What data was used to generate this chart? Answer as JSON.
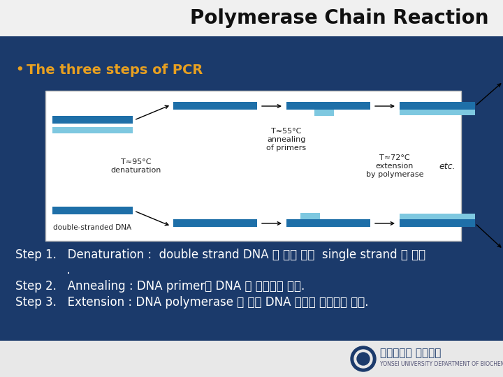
{
  "bg_color": "#1b3a6b",
  "title": "Polymerase Chain Reaction",
  "title_fontsize": 20,
  "title_color": "#111111",
  "header_bg": "#f0f0f0",
  "bullet_text": "The three steps of PCR",
  "bullet_color": "#e8a020",
  "bullet_fontsize": 14,
  "step1": "Step 1.   Denaturation :  double strand DNA 를 열에 의해  single strand 로 분리",
  "step1b": "              .",
  "step2": "Step 2.   Annealing : DNA primer가 DNA 에 결합하는 단계.",
  "step3": "Step 3.   Extension : DNA polymerase 에 의해 DNA 합성이 일어나는 단계.",
  "step_color": "#ffffff",
  "step_fontsize": 12,
  "diagram_bg": "#ffffff",
  "dk": "#1e6fa8",
  "lt": "#7ec8e0",
  "label_color": "#222222",
  "footer_bg": "#e8e8e8",
  "footer_text": "연세대학교 생화학과",
  "footer_sub": "YONSEI UNIVERSITY DEPARTMENT OF BIOCHEMISTRY"
}
